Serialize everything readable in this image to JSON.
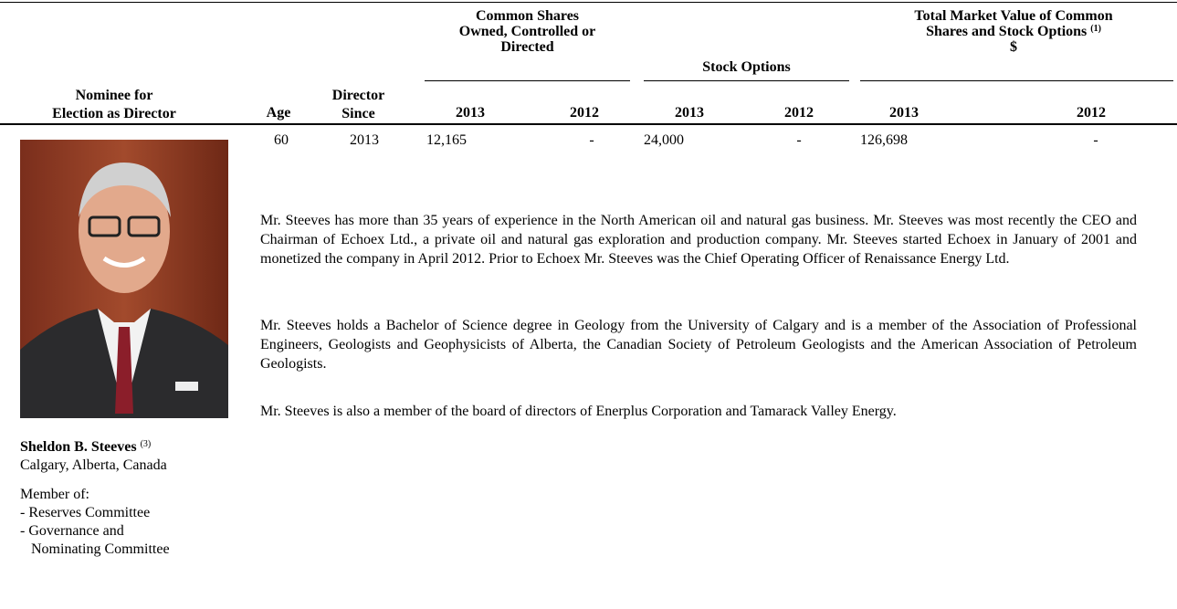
{
  "header": {
    "nominee": [
      "Nominee for",
      "Election as Director"
    ],
    "age": "Age",
    "director_since": [
      "Director",
      "Since"
    ],
    "common_shares": [
      "Common Shares",
      "Owned, Controlled or",
      "Directed"
    ],
    "stock_options": "Stock Options",
    "market_value": [
      "Total Market Value of Common",
      "Shares and Stock Options",
      "$"
    ],
    "market_value_note": "(1)",
    "years": [
      "2013",
      "2012",
      "2013",
      "2012",
      "2013",
      "2012"
    ]
  },
  "row": {
    "age": "60",
    "director_since": "2013",
    "values": [
      "12,165",
      "-",
      "24,000",
      "-",
      "126,698",
      "-"
    ],
    "name": "Sheldon B. Steeves",
    "name_note": "(3)",
    "location": "Calgary, Alberta, Canada",
    "member_of": "Member of:",
    "committees": [
      "- Reserves Committee",
      "- Governance and",
      "Nominating Committee"
    ],
    "paragraphs": [
      "Mr. Steeves has more than 35 years of experience in the North American oil and natural gas business. Mr. Steeves was most recently the CEO and Chairman of Echoex Ltd., a private oil and natural gas exploration and production company. Mr. Steeves started Echoex in January of 2001 and monetized the company in April 2012. Prior to Echoex Mr. Steeves was the Chief Operating Officer of Renaissance Energy Ltd.",
      "Mr. Steeves holds a Bachelor of Science degree in Geology from the University of Calgary and is a member of the Association of Professional Engineers, Geologists and Geophysicists of Alberta, the Canadian Society of Petroleum Geologists and the American Association of Petroleum Geologists.",
      "Mr. Steeves is also a member of the board of directors of Enerplus Corporation and Tamarack Valley Energy."
    ]
  }
}
